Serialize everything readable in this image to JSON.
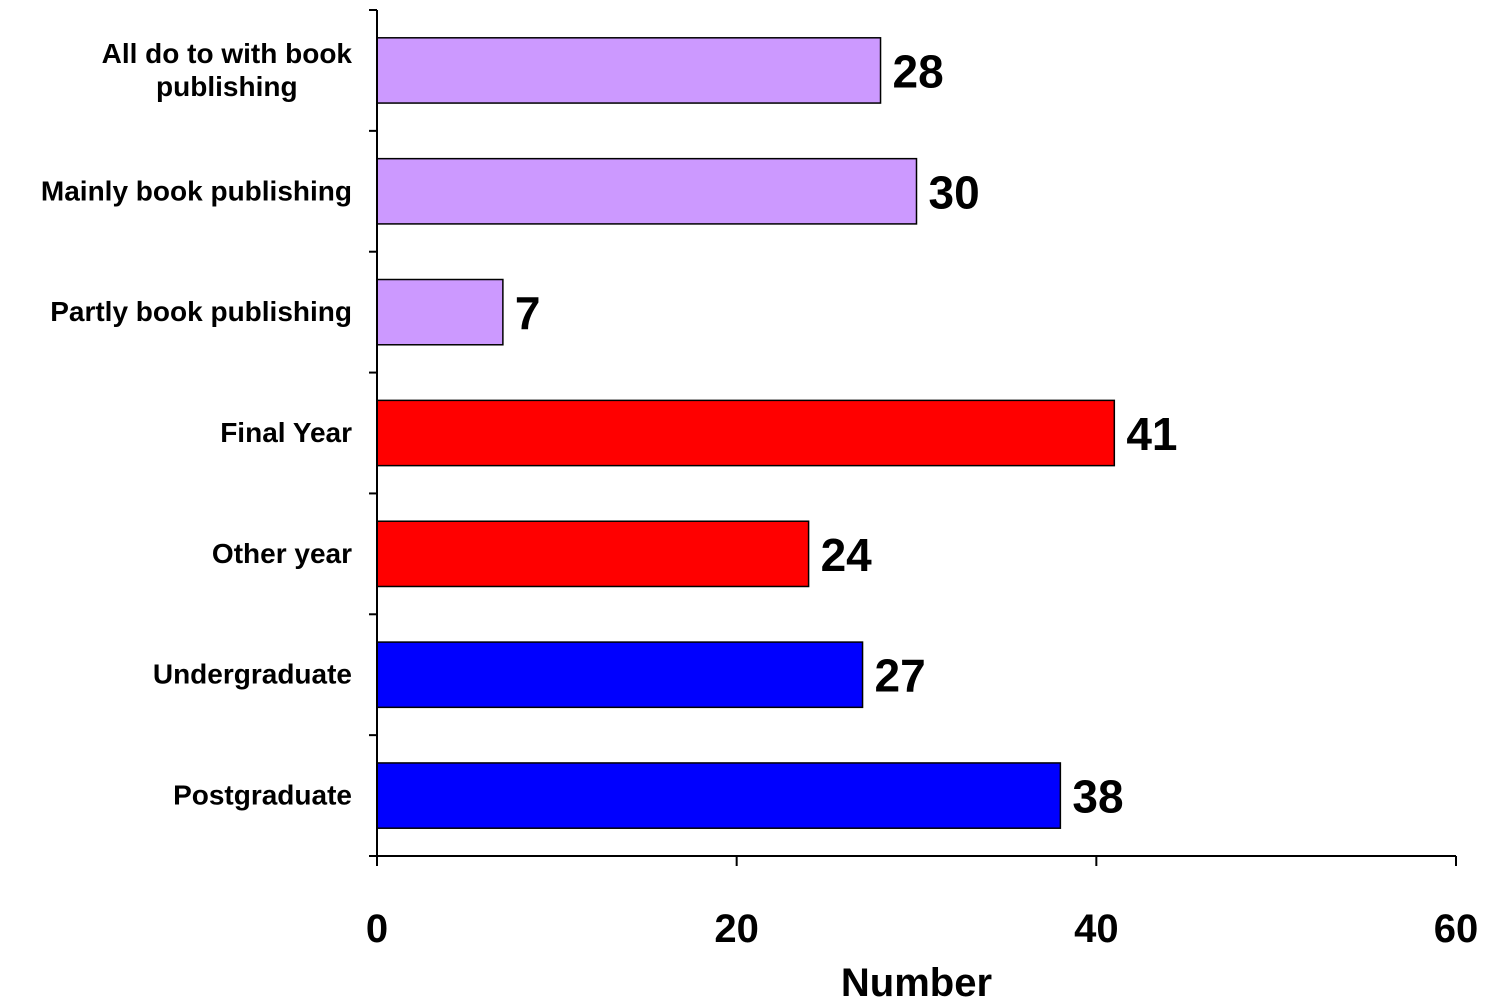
{
  "chart_data": {
    "type": "bar",
    "orientation": "horizontal",
    "title": "",
    "xlabel": "Number",
    "ylabel": "",
    "xlim": [
      0,
      60
    ],
    "x_ticks": [
      "0",
      "20",
      "40",
      "60"
    ],
    "grid": false,
    "legend": "none",
    "categories": [
      [
        "All do to with book",
        "publishing"
      ],
      [
        "Mainly book publishing"
      ],
      [
        "Partly book publishing"
      ],
      [
        "Final Year"
      ],
      [
        "Other year"
      ],
      [
        "Undergraduate"
      ],
      [
        "Postgraduate"
      ]
    ],
    "values": [
      28,
      30,
      7,
      41,
      24,
      27,
      38
    ],
    "data_labels": [
      "28",
      "30",
      "7",
      "41",
      "24",
      "27",
      "38"
    ],
    "bar_colors": [
      "#cc99ff",
      "#cc99ff",
      "#cc99ff",
      "#ff0000",
      "#ff0000",
      "#0000ff",
      "#0000ff"
    ]
  }
}
